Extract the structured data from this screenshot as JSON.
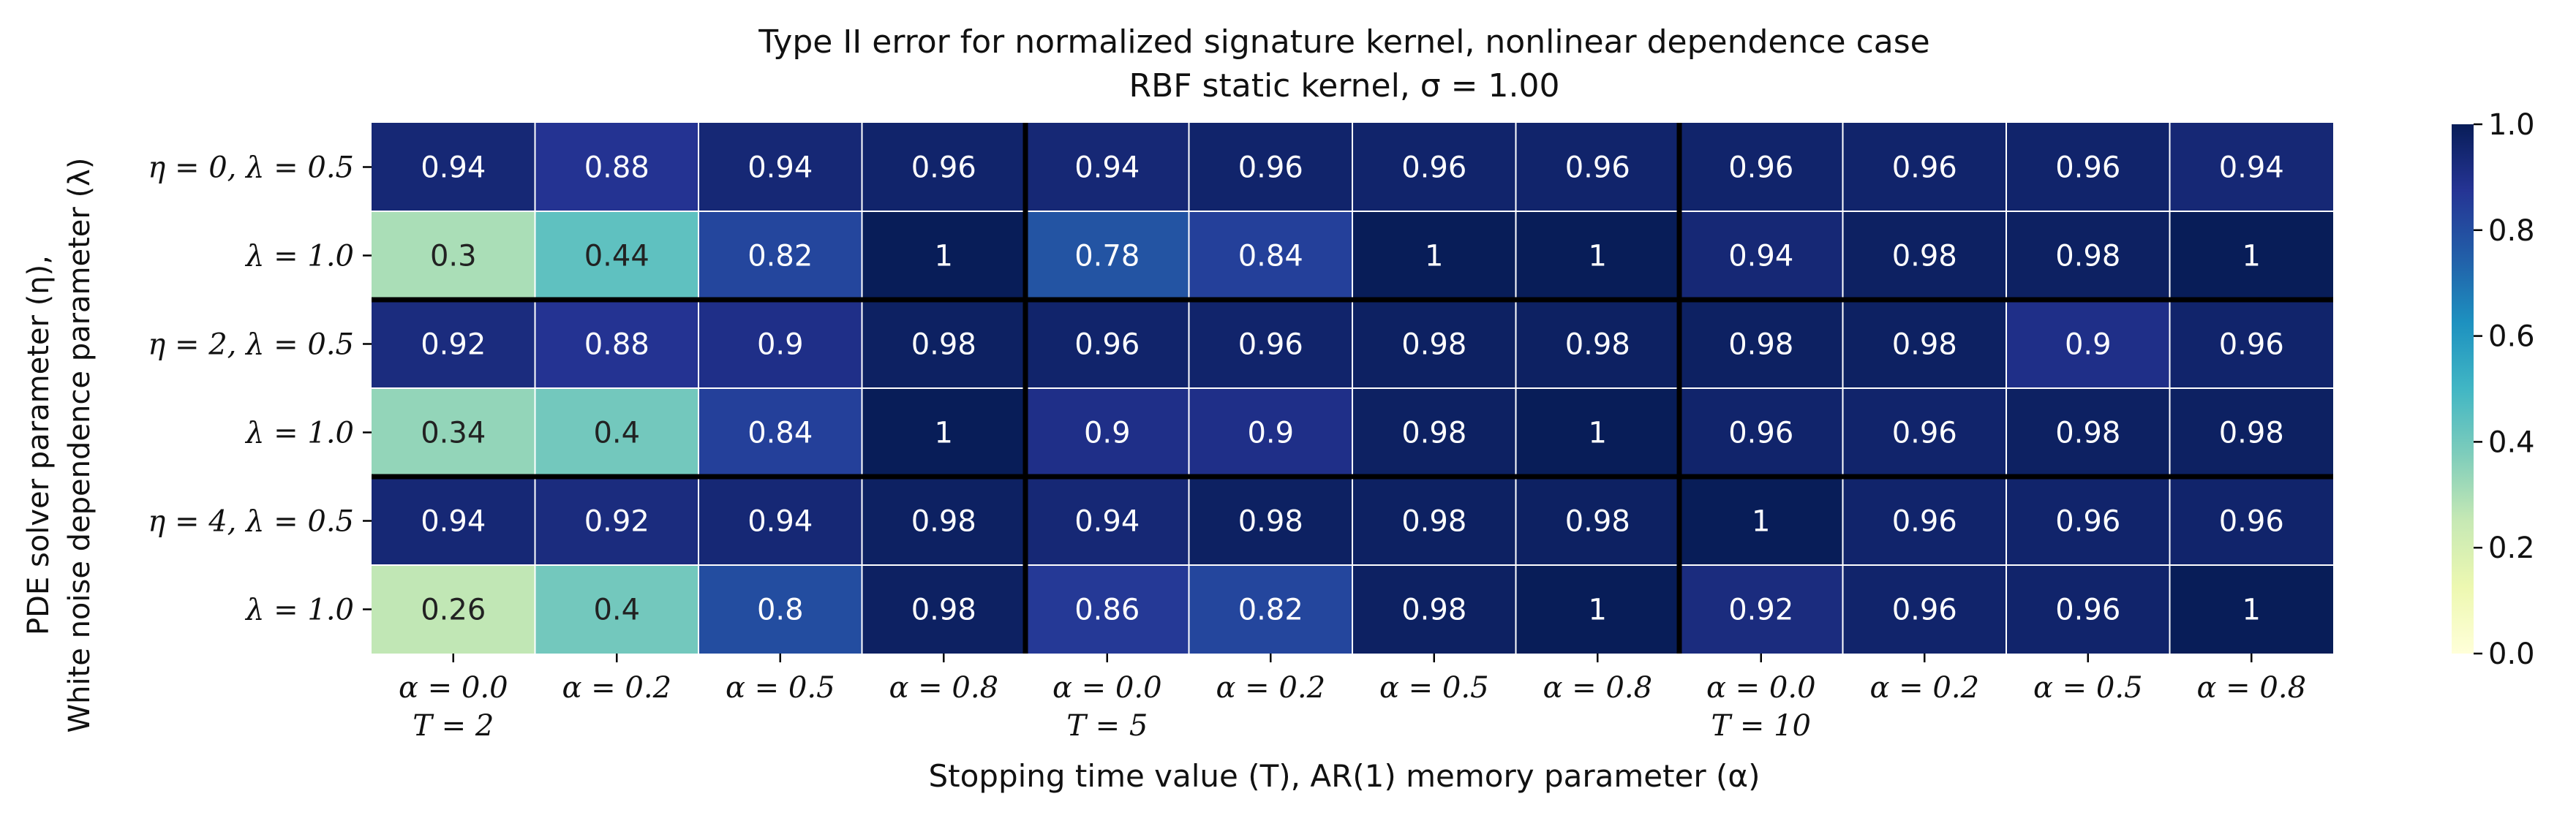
{
  "chart_data": {
    "type": "heatmap",
    "title": "Type II error for normalized signature kernel, nonlinear dependence case",
    "subtitle": "RBF static kernel, σ = 1.00",
    "xlabel": "Stopping time value (T), AR(1) memory parameter (α)",
    "ylabel_line1": "PDE solver parameter (η),",
    "ylabel_line2": "White noise dependence parameter (λ)",
    "x_tick_labels": [
      [
        "α = 0.0",
        "T = 2"
      ],
      [
        "α = 0.2",
        ""
      ],
      [
        "α = 0.5",
        ""
      ],
      [
        "α = 0.8",
        ""
      ],
      [
        "α = 0.0",
        "T = 5"
      ],
      [
        "α = 0.2",
        ""
      ],
      [
        "α = 0.5",
        ""
      ],
      [
        "α = 0.8",
        ""
      ],
      [
        "α = 0.0",
        "T = 10"
      ],
      [
        "α = 0.2",
        ""
      ],
      [
        "α = 0.5",
        ""
      ],
      [
        "α = 0.8",
        ""
      ]
    ],
    "y_tick_labels": [
      "η = 0, λ = 0.5",
      "λ = 1.0",
      "η = 2, λ = 0.5",
      "λ = 1.0",
      "η = 4, λ = 0.5",
      "λ = 1.0"
    ],
    "values": [
      [
        0.94,
        0.88,
        0.94,
        0.96,
        0.94,
        0.96,
        0.96,
        0.96,
        0.96,
        0.96,
        0.96,
        0.94
      ],
      [
        0.3,
        0.44,
        0.82,
        1,
        0.78,
        0.84,
        1,
        1,
        0.94,
        0.98,
        0.98,
        1
      ],
      [
        0.92,
        0.88,
        0.9,
        0.98,
        0.96,
        0.96,
        0.98,
        0.98,
        0.98,
        0.98,
        0.9,
        0.96
      ],
      [
        0.34,
        0.4,
        0.84,
        1,
        0.9,
        0.9,
        0.98,
        1,
        0.96,
        0.96,
        0.98,
        0.98
      ],
      [
        0.94,
        0.92,
        0.94,
        0.98,
        0.94,
        0.98,
        0.98,
        0.98,
        1,
        0.96,
        0.96,
        0.96
      ],
      [
        0.26,
        0.4,
        0.8,
        0.98,
        0.86,
        0.82,
        0.98,
        1,
        0.92,
        0.96,
        0.96,
        1
      ]
    ],
    "value_labels": [
      [
        "0.94",
        "0.88",
        "0.94",
        "0.96",
        "0.94",
        "0.96",
        "0.96",
        "0.96",
        "0.96",
        "0.96",
        "0.96",
        "0.94"
      ],
      [
        "0.3",
        "0.44",
        "0.82",
        "1",
        "0.78",
        "0.84",
        "1",
        "1",
        "0.94",
        "0.98",
        "0.98",
        "1"
      ],
      [
        "0.92",
        "0.88",
        "0.9",
        "0.98",
        "0.96",
        "0.96",
        "0.98",
        "0.98",
        "0.98",
        "0.98",
        "0.9",
        "0.96"
      ],
      [
        "0.34",
        "0.4",
        "0.84",
        "1",
        "0.9",
        "0.9",
        "0.98",
        "1",
        "0.96",
        "0.96",
        "0.98",
        "0.98"
      ],
      [
        "0.94",
        "0.92",
        "0.94",
        "0.98",
        "0.94",
        "0.98",
        "0.98",
        "0.98",
        "1",
        "0.96",
        "0.96",
        "0.96"
      ],
      [
        "0.26",
        "0.4",
        "0.8",
        "0.98",
        "0.86",
        "0.82",
        "0.98",
        "1",
        "0.92",
        "0.96",
        "0.96",
        "1"
      ]
    ],
    "color_range": [
      0.0,
      1.0
    ],
    "colorbar_ticks": [
      0.0,
      0.2,
      0.4,
      0.6,
      0.8,
      1.0
    ],
    "colorbar_tick_labels": [
      "0.0",
      "0.2",
      "0.4",
      "0.6",
      "0.8",
      "1.0"
    ],
    "colormap": "YlGnBu",
    "colormap_stops": [
      "#ffffd9",
      "#edf8b1",
      "#c7e9b4",
      "#7fcdbb",
      "#41b6c4",
      "#1d91c0",
      "#225ea8",
      "#253494",
      "#081d58"
    ],
    "separator_color": "#000000",
    "cell_border_color": "#ffffff",
    "label_color_light": "#ffffff",
    "label_color_dark": "#222222",
    "group_column_boundaries": [
      4,
      8
    ],
    "group_row_boundaries": [
      2,
      4
    ]
  }
}
